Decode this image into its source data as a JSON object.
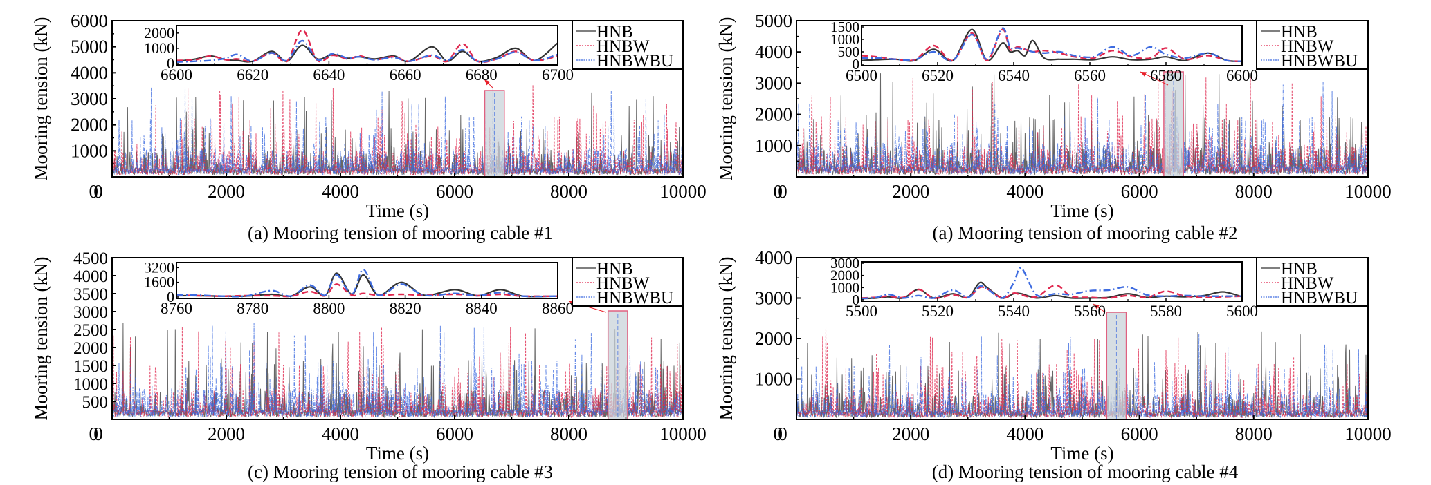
{
  "figure": {
    "legend": [
      "HNB",
      "HNBW",
      "HNBWBU"
    ],
    "colors": {
      "HNB": "#333333",
      "HNBW": "#e0284f",
      "HNBWBU": "#3d6be0",
      "highlight_fill": "#c9d3d9",
      "highlight_stroke": "#e06080",
      "arrow": "#e8202a"
    }
  },
  "chart_data": [
    {
      "type": "line",
      "panel": "a1",
      "title": "(a) Mooring tension of mooring cable #1",
      "xlabel": "Time (s)",
      "ylabel": "Mooring tension (kN)",
      "xlim": [
        0,
        10000
      ],
      "ylim": [
        0,
        6000
      ],
      "xticks": [
        "0",
        "2000",
        "4000",
        "6000",
        "8000",
        "10000"
      ],
      "yticks": [
        "0",
        "1000",
        "2000",
        "3000",
        "4000",
        "5000",
        "6000"
      ],
      "series": [
        {
          "name": "HNB",
          "base": 250,
          "peak_max": 3300
        },
        {
          "name": "HNBW",
          "base": 250,
          "peak_max": 3800
        },
        {
          "name": "HNBWBU",
          "base": 280,
          "peak_max": 3850
        }
      ],
      "highlight_range": [
        6600,
        6700
      ],
      "inset": {
        "xlim": [
          6600,
          6700
        ],
        "ylim": [
          0,
          2400
        ],
        "xticks": [
          "6600",
          "6620",
          "6640",
          "6660",
          "6680",
          "6700"
        ],
        "yticks": [
          "0",
          "1000",
          "2000"
        ],
        "x": [
          6600,
          6605,
          6609,
          6613,
          6616,
          6620,
          6625,
          6629,
          6633,
          6637,
          6641,
          6645,
          6648,
          6652,
          6657,
          6661,
          6667,
          6671,
          6675,
          6679,
          6684,
          6689,
          6694,
          6700
        ],
        "series": [
          {
            "name": "HNB",
            "values": [
              150,
              300,
              500,
              250,
              200,
              150,
              800,
              150,
              1200,
              300,
              600,
              350,
              450,
              300,
              500,
              150,
              1100,
              150,
              800,
              150,
              400,
              1000,
              200,
              1350
            ]
          },
          {
            "name": "HNBW",
            "values": [
              200,
              250,
              500,
              250,
              300,
              150,
              700,
              150,
              2200,
              200,
              550,
              300,
              500,
              250,
              450,
              150,
              500,
              150,
              1300,
              150,
              300,
              800,
              200,
              500
            ]
          },
          {
            "name": "HNBWBU",
            "values": [
              100,
              150,
              200,
              350,
              600,
              150,
              700,
              200,
              1500,
              250,
              650,
              350,
              450,
              250,
              400,
              150,
              550,
              200,
              900,
              150,
              300,
              750,
              200,
              600
            ]
          }
        ]
      }
    },
    {
      "type": "line",
      "panel": "a2",
      "title": "(a) Mooring tension of mooring cable #2",
      "xlabel": "Time (s)",
      "ylabel": "Mooring tension (kN)",
      "xlim": [
        0,
        10000
      ],
      "ylim": [
        0,
        5000
      ],
      "xticks": [
        "0",
        "2000",
        "4000",
        "6000",
        "8000",
        "10000"
      ],
      "yticks": [
        "0",
        "1000",
        "2000",
        "3000",
        "4000",
        "5000"
      ],
      "series": [
        {
          "name": "HNB",
          "base": 250,
          "peak_max": 3350
        },
        {
          "name": "HNBW",
          "base": 250,
          "peak_max": 3250
        },
        {
          "name": "HNBWBU",
          "base": 280,
          "peak_max": 3250
        }
      ],
      "highlight_range": [
        6500,
        6600
      ],
      "inset": {
        "xlim": [
          6500,
          6600
        ],
        "ylim": [
          0,
          1500
        ],
        "xticks": [
          "6500",
          "6520",
          "6540",
          "6560",
          "6580",
          "6600"
        ],
        "yticks": [
          "0",
          "500",
          "1000",
          "1500"
        ],
        "x": [
          6500,
          6504,
          6509,
          6514,
          6519,
          6524,
          6529,
          6533,
          6537,
          6539,
          6541,
          6543,
          6545,
          6548,
          6552,
          6556,
          6561,
          6566,
          6571,
          6576,
          6580,
          6585,
          6591,
          6596,
          6600
        ],
        "series": [
          {
            "name": "HNB",
            "values": [
              150,
              180,
              200,
              150,
              600,
              150,
              1400,
              150,
              850,
              500,
              550,
              350,
              950,
              250,
              200,
              200,
              180,
              300,
              180,
              200,
              300,
              150,
              450,
              150,
              120
            ]
          },
          {
            "name": "HNBW",
            "values": [
              350,
              300,
              200,
              180,
              750,
              150,
              1250,
              150,
              1400,
              600,
              700,
              600,
              500,
              550,
              450,
              300,
              250,
              550,
              300,
              250,
              650,
              200,
              350,
              150,
              120
            ]
          },
          {
            "name": "HNBWBU",
            "values": [
              250,
              250,
              200,
              180,
              500,
              150,
              1200,
              200,
              1450,
              700,
              650,
              600,
              500,
              450,
              500,
              350,
              300,
              700,
              350,
              700,
              400,
              250,
              450,
              150,
              120
            ]
          }
        ]
      }
    },
    {
      "type": "line",
      "panel": "c3",
      "title": "(c) Mooring tension of mooring cable #3",
      "xlabel": "Time (s)",
      "ylabel": "Mooring tension (kN)",
      "xlim": [
        0,
        10000
      ],
      "ylim": [
        0,
        4500
      ],
      "xticks": [
        "0",
        "2000",
        "4000",
        "6000",
        "8000",
        "10000"
      ],
      "yticks": [
        "0",
        "500",
        "1000",
        "1500",
        "2000",
        "2500",
        "3000",
        "3500",
        "4000",
        "4500"
      ],
      "series": [
        {
          "name": "HNB",
          "base": 200,
          "peak_max": 2750
        },
        {
          "name": "HNBW",
          "base": 200,
          "peak_max": 2600
        },
        {
          "name": "HNBWBU",
          "base": 220,
          "peak_max": 2700
        }
      ],
      "highlight_range": [
        8760,
        8860
      ],
      "inset": {
        "xlim": [
          8760,
          8860
        ],
        "ylim": [
          0,
          3600
        ],
        "xticks": [
          "8760",
          "8780",
          "8800",
          "8820",
          "8840",
          "8860"
        ],
        "yticks": [
          "0",
          "1600",
          "3200"
        ],
        "x": [
          8760,
          8766,
          8772,
          8778,
          8785,
          8790,
          8795,
          8799,
          8802,
          8806,
          8809,
          8813,
          8819,
          8825,
          8833,
          8839,
          8845,
          8851,
          8860
        ],
        "series": [
          {
            "name": "HNB",
            "values": [
              150,
              150,
              100,
              100,
              300,
              100,
              1100,
              150,
              2600,
              300,
              2400,
              200,
              1600,
              200,
              800,
              150,
              800,
              100,
              100
            ]
          },
          {
            "name": "HNBW",
            "values": [
              200,
              150,
              100,
              150,
              150,
              100,
              600,
              150,
              1400,
              200,
              400,
              200,
              300,
              200,
              300,
              150,
              300,
              100,
              100
            ]
          },
          {
            "name": "HNBWBU",
            "values": [
              250,
              200,
              100,
              100,
              700,
              100,
              1300,
              200,
              2400,
              300,
              3000,
              200,
              1400,
              200,
              400,
              150,
              500,
              100,
              100
            ]
          }
        ]
      }
    },
    {
      "type": "line",
      "panel": "d4",
      "title": "(d) Mooring tension of mooring cable #4",
      "xlabel": "Time (s)",
      "ylabel": "Mooring tension (kN)",
      "xlim": [
        0,
        10000
      ],
      "ylim": [
        0,
        4000
      ],
      "xticks": [
        "0",
        "2000",
        "4000",
        "6000",
        "8000",
        "10000"
      ],
      "yticks": [
        "0",
        "1000",
        "2000",
        "3000",
        "4000"
      ],
      "series": [
        {
          "name": "HNB",
          "base": 150,
          "peak_max": 2250
        },
        {
          "name": "HNBW",
          "base": 150,
          "peak_max": 2300
        },
        {
          "name": "HNBWBU",
          "base": 170,
          "peak_max": 2200
        }
      ],
      "highlight_range": [
        5500,
        5600
      ],
      "inset": {
        "xlim": [
          5500,
          5600
        ],
        "ylim": [
          0,
          3000
        ],
        "xticks": [
          "5500",
          "5520",
          "5540",
          "5560",
          "5580",
          "5600"
        ],
        "yticks": [
          "0",
          "1000",
          "2000",
          "3000"
        ],
        "x": [
          5500,
          5504,
          5507,
          5511,
          5515,
          5519,
          5524,
          5528,
          5531,
          5533,
          5537,
          5540,
          5542,
          5546,
          5551,
          5555,
          5560,
          5565,
          5570,
          5575,
          5580,
          5585,
          5590,
          5595,
          5600
        ],
        "series": [
          {
            "name": "HNB",
            "values": [
              100,
              150,
              250,
              150,
              850,
              150,
              500,
              200,
              1400,
              1000,
              150,
              500,
              500,
              150,
              350,
              150,
              150,
              200,
              500,
              200,
              300,
              250,
              350,
              650,
              250
            ]
          },
          {
            "name": "HNBW",
            "values": [
              150,
              200,
              300,
              200,
              850,
              150,
              400,
              200,
              1000,
              900,
              150,
              550,
              400,
              250,
              1200,
              300,
              200,
              150,
              350,
              200,
              700,
              300,
              200,
              250,
              300
            ]
          },
          {
            "name": "HNBWBU",
            "values": [
              100,
              200,
              450,
              150,
              350,
              150,
              800,
              200,
              1100,
              900,
              150,
              1400,
              2600,
              400,
              500,
              450,
              750,
              800,
              1050,
              400,
              300,
              350,
              300,
              300,
              300
            ]
          }
        ]
      }
    }
  ]
}
